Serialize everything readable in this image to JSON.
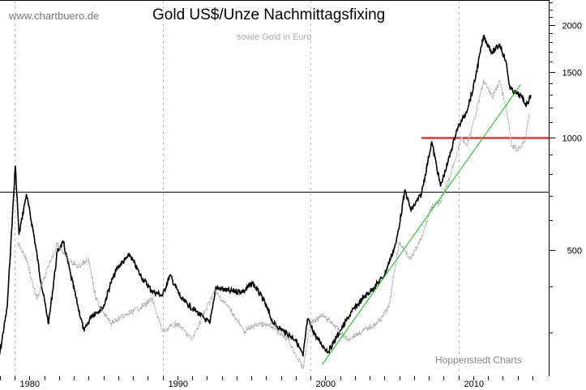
{
  "chart_data": {
    "type": "line",
    "title": "Gold US$/Unze Nachmittagsfixing",
    "subtitle": "sowie Gold in Euro",
    "watermark": "www.chartbuero.de",
    "source": "Hoppenstedt Charts",
    "xlabel": "",
    "ylabel": "",
    "y_scale": "log",
    "ylim": [
      220,
      2400
    ],
    "xlim": [
      1978.7,
      2015.7
    ],
    "x_ticks": [
      "1980",
      "1990",
      "2000",
      "2010"
    ],
    "y_ticks": [
      "500",
      "1000",
      "1500",
      "2000"
    ],
    "grid": "vertical dashed at decades",
    "legend": "none",
    "series": [
      {
        "color": "#000000",
        "x": [
          1978.8,
          1979.5,
          1980.05,
          1980.3,
          1980.8,
          1981.3,
          1981.8,
          1982.3,
          1982.9,
          1983.3,
          1983.8,
          1984.3,
          1984.7,
          1985.2,
          1986.0,
          1986.5,
          1987.0,
          1987.8,
          1988.5,
          1989.3,
          1990.0,
          1990.5,
          1991.3,
          1992.3,
          1993.2,
          1993.6,
          1994.5,
          1995.5,
          1996.1,
          1996.8,
          1997.5,
          1998.2,
          1999.0,
          1999.5,
          1999.8,
          2000.5,
          2001.2,
          2002.0,
          2002.8,
          2003.5,
          2004.3,
          2005.0,
          2005.8,
          2006.4,
          2006.8,
          2007.5,
          2008.2,
          2008.8,
          2009.3,
          2009.9,
          2010.5,
          2011.0,
          2011.7,
          2012.3,
          2012.8,
          2013.2,
          2013.5,
          2013.9,
          2014.3,
          2014.6,
          2014.9
        ],
        "y": [
          236,
          351,
          840,
          550,
          705,
          550,
          408,
          318,
          498,
          523,
          428,
          351,
          303,
          334,
          351,
          408,
          451,
          485,
          428,
          388,
          378,
          428,
          369,
          342,
          318,
          397,
          388,
          388,
          408,
          369,
          318,
          303,
          288,
          260,
          326,
          288,
          267,
          303,
          342,
          369,
          397,
          428,
          523,
          723,
          638,
          705,
          975,
          741,
          861,
          1051,
          1161,
          1349,
          1865,
          1688,
          1775,
          1606,
          1349,
          1315,
          1283,
          1221,
          1296
        ]
      },
      {
        "color": "#aaaaaa",
        "x": [
          1980.2,
          1980.8,
          1981.5,
          1982.3,
          1982.9,
          1983.5,
          1984.3,
          1985.0,
          1985.5,
          1986.5,
          1987.5,
          1988.5,
          1989.3,
          1990.0,
          1991.0,
          1992.0,
          1993.5,
          1994.5,
          1995.5,
          1996.5,
          1997.5,
          1998.5,
          1999.5,
          2000.0,
          2000.8,
          2001.5,
          2002.5,
          2003.5,
          2004.5,
          2005.3,
          2006.0,
          2006.8,
          2007.5,
          2008.2,
          2008.8,
          2009.5,
          2010.2,
          2010.6,
          2011.2,
          2011.7,
          2012.3,
          2012.8,
          2013.3,
          2013.6,
          2014.0,
          2014.5,
          2014.8
        ],
        "y": [
          523,
          474,
          369,
          451,
          523,
          474,
          451,
          474,
          369,
          318,
          334,
          351,
          369,
          303,
          318,
          288,
          388,
          351,
          303,
          318,
          310,
          288,
          241,
          318,
          334,
          318,
          288,
          303,
          318,
          351,
          523,
          474,
          536,
          655,
          671,
          799,
          1000,
          951,
          1161,
          1417,
          1283,
          1417,
          1161,
          951,
          928,
          975,
          1161
        ]
      }
    ],
    "annotations": [
      {
        "type": "hline",
        "value": 716,
        "color": "#000000",
        "x_from": 1978.7
      },
      {
        "type": "hline",
        "value": 1000,
        "color": "#ff0000",
        "x_from": 2007.5
      },
      {
        "type": "trendline",
        "color": "#00cc00",
        "x": [
          2000.8,
          2014.2
        ],
        "y": [
          247,
          1383
        ]
      }
    ]
  }
}
